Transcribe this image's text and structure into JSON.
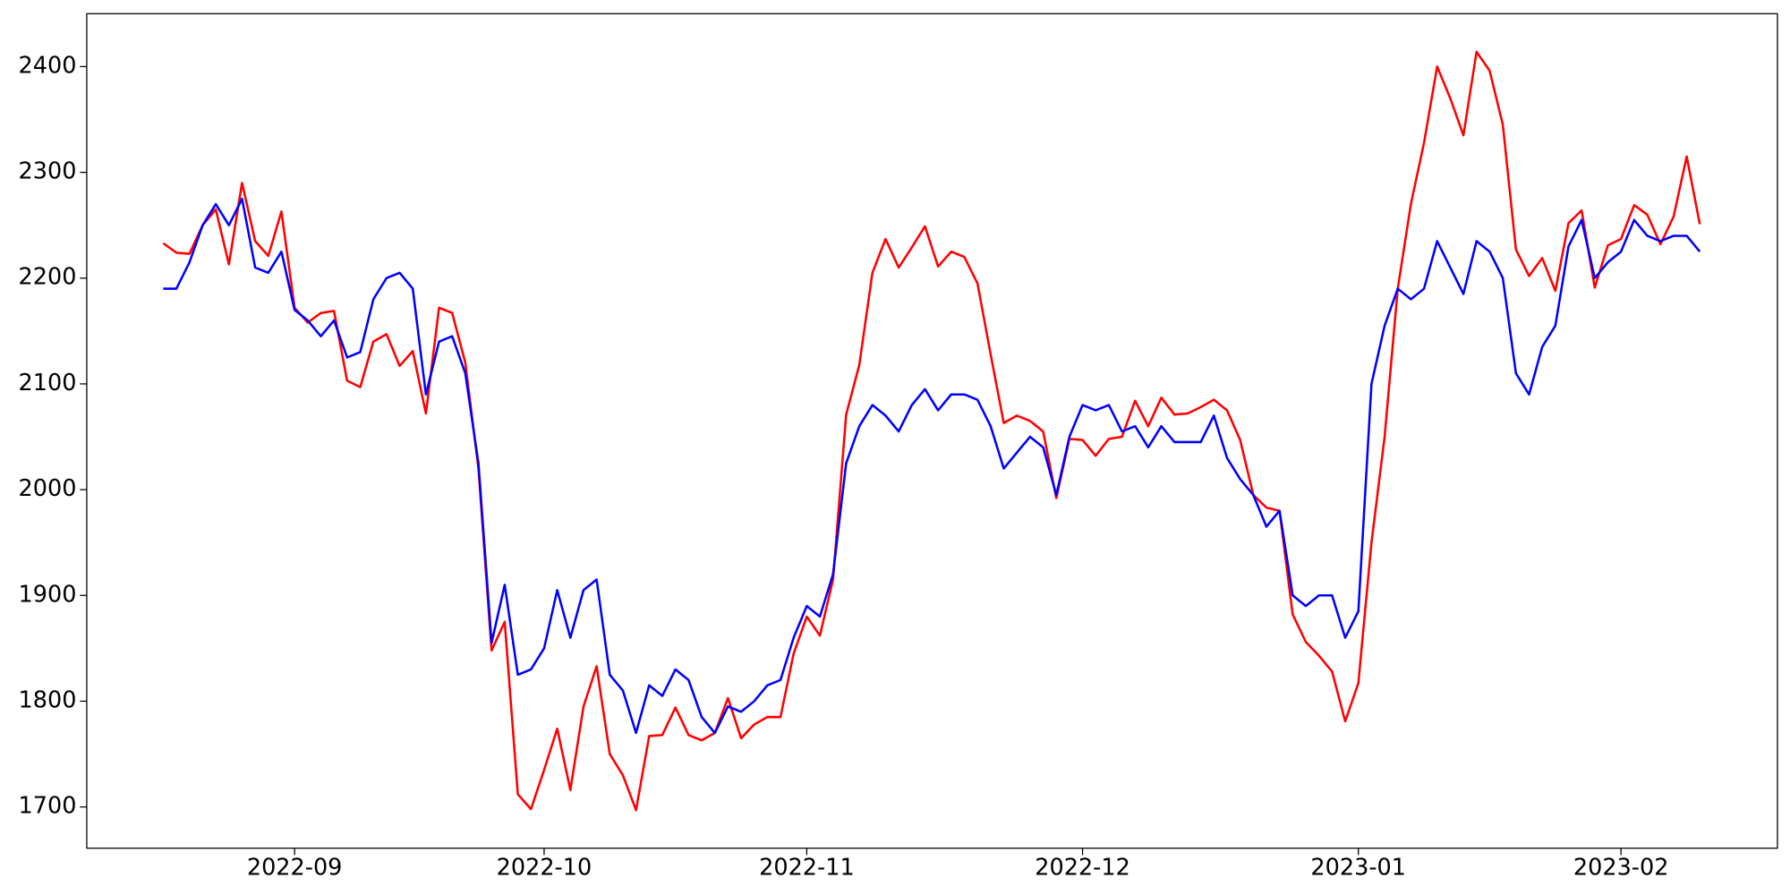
{
  "chart_data": {
    "type": "line",
    "categories": [
      null,
      null,
      null,
      null,
      null,
      null,
      null,
      null,
      null,
      null,
      "2022-09",
      null,
      null,
      null,
      null,
      null,
      null,
      null,
      null,
      null,
      null,
      null,
      null,
      null,
      null,
      null,
      null,
      null,
      null,
      "2022-10",
      null,
      null,
      null,
      null,
      null,
      null,
      null,
      null,
      null,
      null,
      null,
      null,
      null,
      null,
      null,
      null,
      null,
      null,
      null,
      "2022-11",
      null,
      null,
      null,
      null,
      null,
      null,
      null,
      null,
      null,
      null,
      null,
      null,
      null,
      null,
      null,
      null,
      null,
      null,
      null,
      null,
      "2022-12",
      null,
      null,
      null,
      null,
      null,
      null,
      null,
      null,
      null,
      null,
      null,
      null,
      null,
      null,
      null,
      null,
      null,
      null,
      null,
      null,
      "2023-01",
      null,
      null,
      null,
      null,
      null,
      null,
      null,
      null,
      null,
      null,
      null,
      null,
      null,
      null,
      null,
      null,
      null,
      null,
      null,
      "2023-02",
      null,
      null,
      null,
      null,
      null,
      null
    ],
    "series": [
      {
        "color": "#ff0000",
        "values": [
          2233,
          2224,
          2223,
          2250,
          2265,
          2213,
          2290,
          2235,
          2221,
          2263,
          2172,
          2158,
          2167,
          2169,
          2103,
          2097,
          2140,
          2147,
          2117,
          2131,
          2072,
          2172,
          2167,
          2120,
          2020,
          1848,
          1875,
          1712,
          1698,
          1735,
          1774,
          1716,
          1795,
          1833,
          1750,
          1730,
          1697,
          1767,
          1768,
          1794,
          1768,
          1763,
          1770,
          1803,
          1765,
          1778,
          1785,
          1785,
          1845,
          1880,
          1862,
          1915,
          2071,
          2118,
          2205,
          2237,
          2210,
          2229,
          2249,
          2211,
          2225,
          2220,
          2195,
          2128,
          2063,
          2070,
          2065,
          2055,
          1992,
          2048,
          2047,
          2032,
          2048,
          2050,
          2084,
          2060,
          2087,
          2071,
          2072,
          2078,
          2085,
          2075,
          2047,
          1995,
          1983,
          1980,
          1882,
          1856,
          1843,
          1828,
          1781,
          1817,
          1950,
          2050,
          2190,
          2270,
          2328,
          2400,
          2370,
          2335,
          2414,
          2396,
          2345,
          2227,
          2202,
          2219,
          2188,
          2252,
          2264,
          2191,
          2231,
          2237,
          2269,
          2260,
          2232,
          2258,
          2315,
          2251
        ]
      },
      {
        "color": "#0000ff",
        "values": [
          2190,
          2190,
          2215,
          2250,
          2270,
          2250,
          2275,
          2210,
          2205,
          2225,
          2170,
          2160,
          2145,
          2160,
          2125,
          2130,
          2180,
          2200,
          2205,
          2190,
          2090,
          2140,
          2145,
          2110,
          2025,
          1855,
          1910,
          1825,
          1830,
          1850,
          1905,
          1860,
          1905,
          1915,
          1825,
          1810,
          1770,
          1815,
          1805,
          1830,
          1820,
          1785,
          1770,
          1795,
          1790,
          1800,
          1815,
          1820,
          1860,
          1890,
          1880,
          1920,
          2025,
          2060,
          2080,
          2070,
          2055,
          2080,
          2095,
          2075,
          2090,
          2090,
          2085,
          2060,
          2020,
          2035,
          2050,
          2040,
          1995,
          2050,
          2080,
          2075,
          2080,
          2055,
          2060,
          2040,
          2060,
          2045,
          2045,
          2045,
          2070,
          2030,
          2010,
          1995,
          1965,
          1980,
          1900,
          1890,
          1900,
          1900,
          1860,
          1885,
          2100,
          2155,
          2190,
          2180,
          2190,
          2235,
          2210,
          2185,
          2235,
          2225,
          2200,
          2110,
          2090,
          2135,
          2155,
          2230,
          2255,
          2200,
          2215,
          2225,
          2255,
          2240,
          2235,
          2240,
          2240,
          2225
        ]
      }
    ],
    "ylim": [
      1661,
      2450
    ],
    "yticks": [
      1700,
      1800,
      1900,
      2000,
      2100,
      2200,
      2300,
      2400
    ],
    "grid": false
  }
}
